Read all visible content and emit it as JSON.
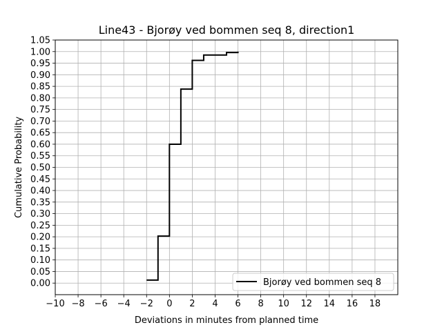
{
  "chart_data": {
    "type": "line",
    "step": "post",
    "title": "Line43 - Bjorøy ved bommen seq 8, direction1",
    "xlabel": "Deviations in minutes from planned time",
    "ylabel": "Cumulative Probability",
    "xlim": [
      -10,
      20
    ],
    "ylim": [
      -0.05,
      1.05
    ],
    "xticks": [
      -10,
      -8,
      -6,
      -4,
      -2,
      0,
      2,
      4,
      6,
      8,
      10,
      12,
      14,
      16,
      18
    ],
    "xtick_labels": [
      "−10",
      "−8",
      "−6",
      "−4",
      "−2",
      "0",
      "2",
      "4",
      "6",
      "8",
      "10",
      "12",
      "14",
      "16",
      "18"
    ],
    "yticks": [
      0.0,
      0.05,
      0.1,
      0.15,
      0.2,
      0.25,
      0.3,
      0.35,
      0.4,
      0.45,
      0.5,
      0.55,
      0.6,
      0.65,
      0.7,
      0.75,
      0.8,
      0.85,
      0.9,
      0.95,
      1.0,
      1.05
    ],
    "ytick_labels": [
      "0.00",
      "0.05",
      "0.10",
      "0.15",
      "0.20",
      "0.25",
      "0.30",
      "0.35",
      "0.40",
      "0.45",
      "0.50",
      "0.55",
      "0.60",
      "0.65",
      "0.70",
      "0.75",
      "0.80",
      "0.85",
      "0.90",
      "0.95",
      "1.00",
      "1.05"
    ],
    "grid": true,
    "legend_position": "lower-right",
    "series": [
      {
        "name": "Bjorøy ved bommen seq 8",
        "color": "#000000",
        "x": [
          -2,
          -1,
          0,
          1,
          2,
          3,
          5,
          6
        ],
        "y": [
          0.013,
          0.203,
          0.6,
          0.838,
          0.962,
          0.985,
          0.996,
          1.0
        ]
      }
    ]
  }
}
